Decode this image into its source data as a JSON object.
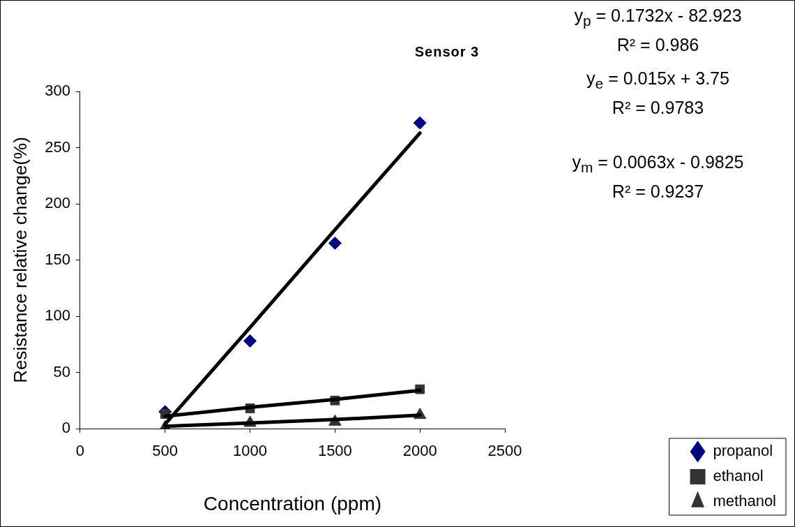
{
  "chart_data": {
    "type": "scatter",
    "title": "Sensor 3",
    "xlabel": "Concentration (ppm)",
    "ylabel": "Resistance relative change(%)",
    "x": [
      500,
      1000,
      1500,
      2000
    ],
    "series": [
      {
        "name": "propanol",
        "color": "#000080",
        "marker": "diamond",
        "values": [
          15,
          78,
          165,
          272
        ]
      },
      {
        "name": "ethanol",
        "color": "#333333",
        "marker": "square",
        "values": [
          13,
          18,
          25,
          35
        ]
      },
      {
        "name": "methanol",
        "color": "#333333",
        "marker": "triangle",
        "values": [
          1,
          5,
          6,
          12
        ]
      },
      {
        "type": "line",
        "color": "#000000",
        "marker": "none",
        "values": [
          4,
          90,
          177,
          263
        ]
      },
      {
        "type": "line",
        "color": "#000000",
        "marker": "none",
        "values": [
          11,
          19,
          26,
          34
        ]
      },
      {
        "type": "line",
        "color": "#000000",
        "marker": "none",
        "values": [
          2,
          5,
          8,
          12
        ]
      }
    ],
    "xlim": [
      0,
      2500
    ],
    "xticks": [
      0,
      500,
      1000,
      1500,
      2000,
      2500
    ],
    "ylim": [
      0,
      300
    ],
    "yticks": [
      0,
      50,
      100,
      150,
      200,
      250,
      300
    ],
    "grid": false,
    "legend": "bottom right",
    "annotations": [
      "y$_{p}$ = 0.1732x - 82.923",
      "R² = 0.986",
      "y$_{e}$ = 0.015x + 3.75",
      "R² = 0.9783",
      "y$_{m}$ = 0.0063x - 0.9825",
      "R² = 0.9237"
    ]
  }
}
